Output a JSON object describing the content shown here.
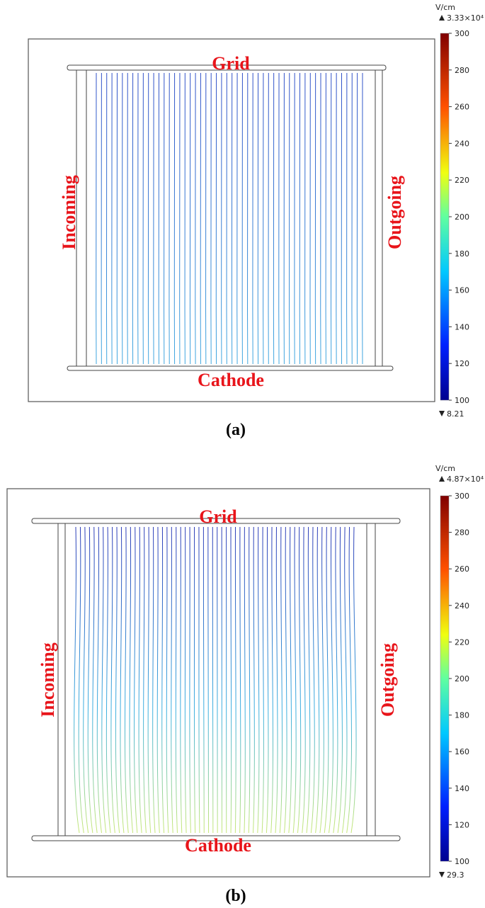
{
  "panels": [
    {
      "labels": {
        "top": "Grid",
        "bottom": "Cathode",
        "left": "Incoming",
        "right": "Outgoing"
      },
      "caption": "(a)",
      "colorbar": {
        "unit": "V/cm",
        "max_label": "3.33×10⁴",
        "min_label": "8.21",
        "lim": [
          100,
          300
        ],
        "ticks": [
          100,
          120,
          140,
          160,
          180,
          200,
          220,
          240,
          260,
          280,
          300
        ]
      }
    },
    {
      "labels": {
        "top": "Grid",
        "bottom": "Cathode",
        "left": "Incoming",
        "right": "Outgoing"
      },
      "caption": "(b)",
      "colorbar": {
        "unit": "V/cm",
        "max_label": "4.87×10⁴",
        "min_label": "29.3",
        "lim": [
          100,
          300
        ],
        "ticks": [
          100,
          120,
          140,
          160,
          180,
          200,
          220,
          240,
          260,
          280,
          300
        ]
      }
    }
  ]
}
